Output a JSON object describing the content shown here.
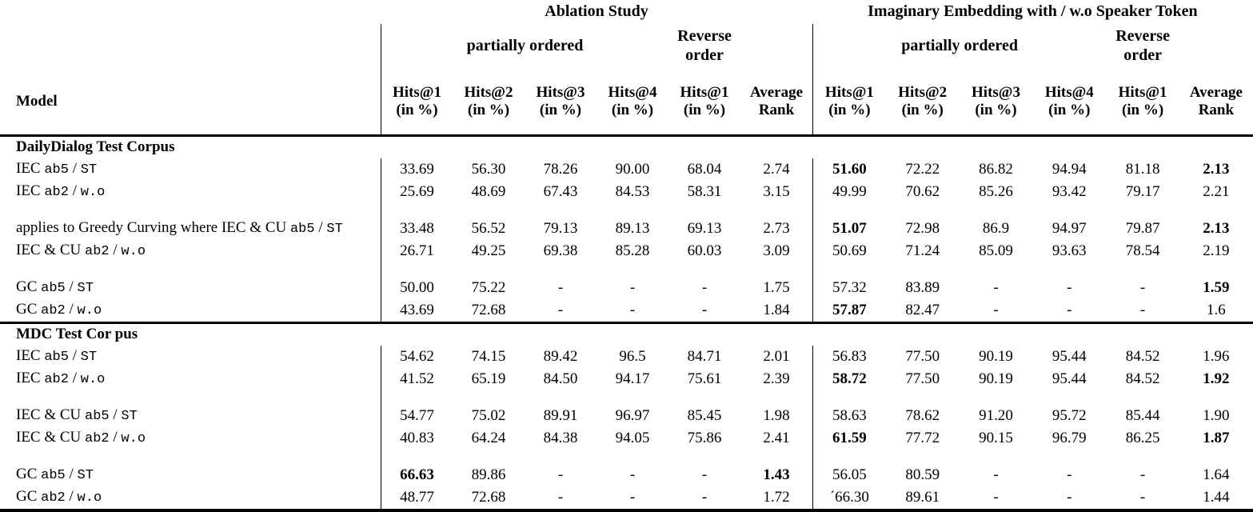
{
  "page": {
    "background": "#ffffff",
    "text_color": "#000000",
    "rule_color": "#000000"
  },
  "header": {
    "model_label": "Model",
    "groups": [
      {
        "title": "Ablation Study",
        "partially_ordered_label": "partially ordered",
        "reverse_order_label": "Reverse\norder",
        "columns": [
          {
            "l1": "Hits@1",
            "l2": "(in %)"
          },
          {
            "l1": "Hits@2",
            "l2": "(in %)"
          },
          {
            "l1": "Hits@3",
            "l2": "(in %)"
          },
          {
            "l1": "Hits@4",
            "l2": "(in %)"
          },
          {
            "l1": "Hits@1",
            "l2": "(in %)"
          },
          {
            "l1": "Average",
            "l2": "Rank"
          }
        ]
      },
      {
        "title": "Imaginary Embedding with / w.o Speaker Token",
        "partially_ordered_label": "partially ordered",
        "reverse_order_label": "Reverse\norder",
        "columns": [
          {
            "l1": "Hits@1",
            "l2": "(in %)"
          },
          {
            "l1": "Hits@2",
            "l2": "(in %)"
          },
          {
            "l1": "Hits@3",
            "l2": "(in %)"
          },
          {
            "l1": "Hits@4",
            "l2": "(in %)"
          },
          {
            "l1": "Hits@1",
            "l2": "(in %)"
          },
          {
            "l1": "Average",
            "l2": "Rank"
          }
        ]
      }
    ]
  },
  "sections": [
    {
      "title": "DailyDialog Test Corpus",
      "rows": [
        {
          "model": [
            [
              "IEC ",
              "serif"
            ],
            [
              "ab5",
              "mono"
            ],
            [
              " / ",
              "serif"
            ],
            [
              "ST",
              "mono"
            ]
          ],
          "values": [
            "33.69",
            "56.30",
            "78.26",
            "90.00",
            "68.04",
            "2.74",
            "51.60",
            "72.22",
            "86.82",
            "94.94",
            "81.18",
            "2.13"
          ],
          "bold": [
            6,
            11
          ]
        },
        {
          "model": [
            [
              "IEC ",
              "serif"
            ],
            [
              "ab2",
              "mono"
            ],
            [
              " / ",
              "serif"
            ],
            [
              "w.o",
              "mono"
            ]
          ],
          "values": [
            "25.69",
            "48.69",
            "67.43",
            "84.53",
            "58.31",
            "3.15",
            "49.99",
            "70.62",
            "85.26",
            "93.42",
            "79.17",
            "2.21"
          ],
          "bold": []
        },
        {
          "spacer": true
        },
        {
          "model": [
            [
              "applies to Greedy Curving where IEC & CU ",
              "serif"
            ],
            [
              "ab5",
              "mono"
            ],
            [
              " / ",
              "serif"
            ],
            [
              "ST",
              "mono"
            ]
          ],
          "values": [
            "33.48",
            "56.52",
            "79.13",
            "89.13",
            "69.13",
            "2.73",
            "51.07",
            "72.98",
            "86.9",
            "94.97",
            "79.87",
            "2.13"
          ],
          "bold": [
            6,
            11
          ]
        },
        {
          "model": [
            [
              "IEC & CU ",
              "serif"
            ],
            [
              "ab2",
              "mono"
            ],
            [
              " / ",
              "serif"
            ],
            [
              "w.o",
              "mono"
            ]
          ],
          "values": [
            "26.71",
            "49.25",
            "69.38",
            "85.28",
            "60.03",
            "3.09",
            "50.69",
            "71.24",
            "85.09",
            "93.63",
            "78.54",
            "2.19"
          ],
          "bold": []
        },
        {
          "spacer": true
        },
        {
          "model": [
            [
              "GC ",
              "serif"
            ],
            [
              "ab5",
              "mono"
            ],
            [
              " / ",
              "serif"
            ],
            [
              "ST",
              "mono"
            ]
          ],
          "values": [
            "50.00",
            "75.22",
            "-",
            "-",
            "-",
            "1.75",
            "57.32",
            "83.89",
            "-",
            "-",
            "-",
            "1.59"
          ],
          "bold": [
            11
          ]
        },
        {
          "model": [
            [
              "GC ",
              "serif"
            ],
            [
              "ab2",
              "mono"
            ],
            [
              " / ",
              "serif"
            ],
            [
              "w.o",
              "mono"
            ]
          ],
          "values": [
            "43.69",
            "72.68",
            "-",
            "-",
            "-",
            "1.84",
            "57.87",
            "82.47",
            "-",
            "-",
            "-",
            "1.6"
          ],
          "bold": [
            6
          ]
        }
      ]
    },
    {
      "title": "MDC Test Cor pus",
      "rows": [
        {
          "model": [
            [
              "IEC ",
              "serif"
            ],
            [
              "ab5",
              "mono"
            ],
            [
              " / ",
              "serif"
            ],
            [
              "ST",
              "mono"
            ]
          ],
          "values": [
            "54.62",
            "74.15",
            "89.42",
            "96.5",
            "84.71",
            "2.01",
            "56.83",
            "77.50",
            "90.19",
            "95.44",
            "84.52",
            "1.96"
          ],
          "bold": []
        },
        {
          "model": [
            [
              "IEC ",
              "serif"
            ],
            [
              "ab2",
              "mono"
            ],
            [
              " / ",
              "serif"
            ],
            [
              "w.o",
              "mono"
            ]
          ],
          "values": [
            "41.52",
            "65.19",
            "84.50",
            "94.17",
            "75.61",
            "2.39",
            "58.72",
            "77.50",
            "90.19",
            "95.44",
            "84.52",
            "1.92"
          ],
          "bold": [
            6,
            11
          ]
        },
        {
          "spacer": true
        },
        {
          "model": [
            [
              "IEC & CU ",
              "serif"
            ],
            [
              "ab5",
              "mono"
            ],
            [
              " / ",
              "serif"
            ],
            [
              "ST",
              "mono"
            ]
          ],
          "values": [
            "54.77",
            "75.02",
            "89.91",
            "96.97",
            "85.45",
            "1.98",
            "58.63",
            "78.62",
            "91.20",
            "95.72",
            "85.44",
            "1.90"
          ],
          "bold": []
        },
        {
          "model": [
            [
              "IEC & CU ",
              "serif"
            ],
            [
              "ab2",
              "mono"
            ],
            [
              " / ",
              "serif"
            ],
            [
              "w.o",
              "mono"
            ]
          ],
          "values": [
            "40.83",
            "64.24",
            "84.38",
            "94.05",
            "75.86",
            "2.41",
            "61.59",
            "77.72",
            "90.15",
            "96.79",
            "86.25",
            "1.87"
          ],
          "bold": [
            6,
            11
          ]
        },
        {
          "spacer": true
        },
        {
          "model": [
            [
              "GC ",
              "serif"
            ],
            [
              "ab5",
              "mono"
            ],
            [
              " / ",
              "serif"
            ],
            [
              "ST",
              "mono"
            ]
          ],
          "values": [
            "66.63",
            "89.86",
            "-",
            "-",
            "-",
            "1.43",
            "56.05",
            "80.59",
            "-",
            "-",
            "-",
            "1.64"
          ],
          "bold": [
            0,
            5
          ]
        },
        {
          "model": [
            [
              "GC ",
              "serif"
            ],
            [
              "ab2",
              "mono"
            ],
            [
              " / ",
              "serif"
            ],
            [
              "w.o",
              "mono"
            ]
          ],
          "values": [
            "48.77",
            "72.68",
            "-",
            "-",
            "-",
            "1.72",
            "´66.30",
            "89.61",
            "-",
            "-",
            "-",
            "1.44"
          ],
          "bold": []
        }
      ]
    }
  ]
}
